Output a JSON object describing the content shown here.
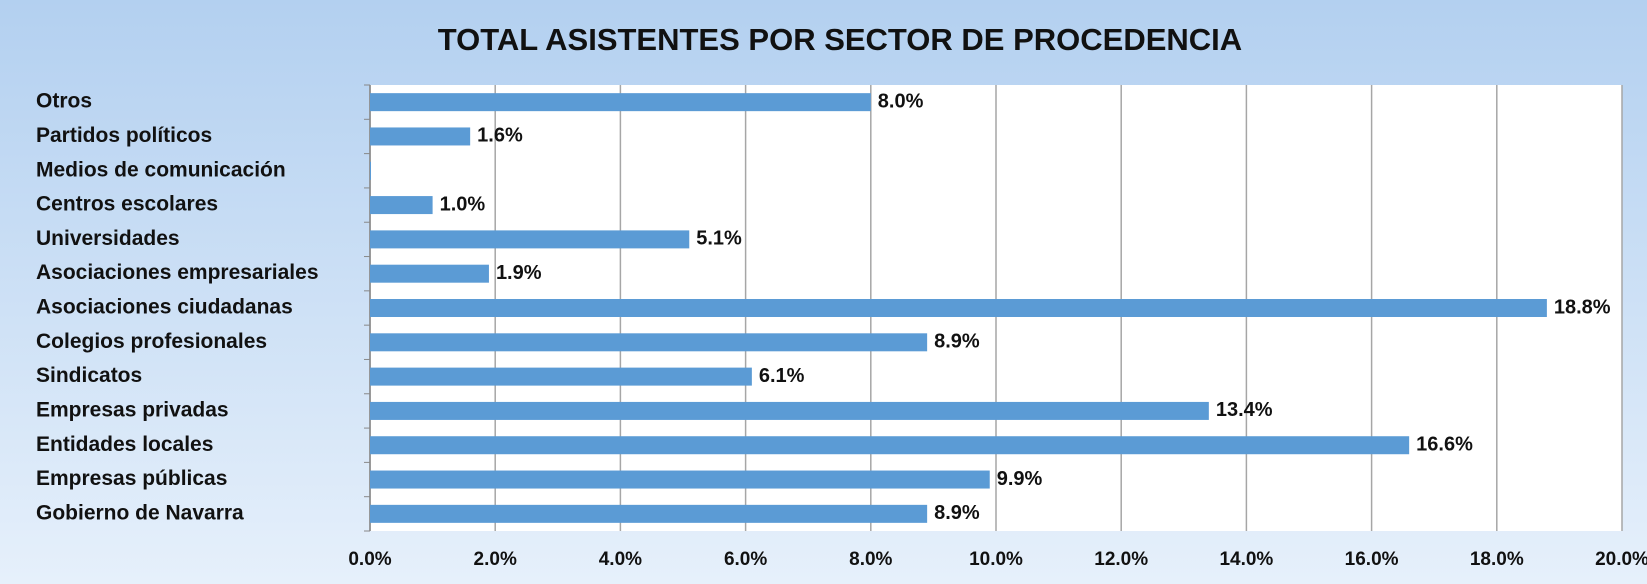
{
  "chart_data": {
    "type": "bar",
    "orientation": "horizontal",
    "title": "TOTAL ASISTENTES POR SECTOR DE PROCEDENCIA",
    "categories": [
      "Otros",
      "Partidos políticos",
      "Medios de comunicación",
      "Centros escolares",
      "Universidades",
      "Asociaciones empresariales",
      "Asociaciones ciudadanas",
      "Colegios profesionales",
      "Sindicatos",
      "Empresas privadas",
      "Entidades locales",
      "Empresas públicas",
      "Gobierno de Navarra"
    ],
    "values": [
      8.0,
      1.6,
      0,
      1.0,
      5.1,
      1.9,
      18.8,
      8.9,
      6.1,
      13.4,
      16.6,
      9.9,
      8.9
    ],
    "value_labels": [
      "8.0%",
      "1.6%",
      null,
      "1.0%",
      "5.1%",
      "1.9%",
      "18.8%",
      "8.9%",
      "6.1%",
      "13.4%",
      "16.6%",
      "9.9%",
      "8.9%"
    ],
    "color": "#5b9bd5",
    "xlim": [
      0,
      20
    ],
    "xticks": [
      {
        "value": 0,
        "label": "0.0%"
      },
      {
        "value": 2,
        "label": "2.0%"
      },
      {
        "value": 4,
        "label": "4.0%"
      },
      {
        "value": 6,
        "label": "6.0%"
      },
      {
        "value": 8,
        "label": "8.0%"
      },
      {
        "value": 10,
        "label": "10.0%"
      },
      {
        "value": 12,
        "label": "12.0%"
      },
      {
        "value": 14,
        "label": "14.0%"
      },
      {
        "value": 16,
        "label": "16.0%"
      },
      {
        "value": 18,
        "label": "18.0%"
      },
      {
        "value": 20,
        "label": "20.0%"
      }
    ],
    "grid": true
  }
}
